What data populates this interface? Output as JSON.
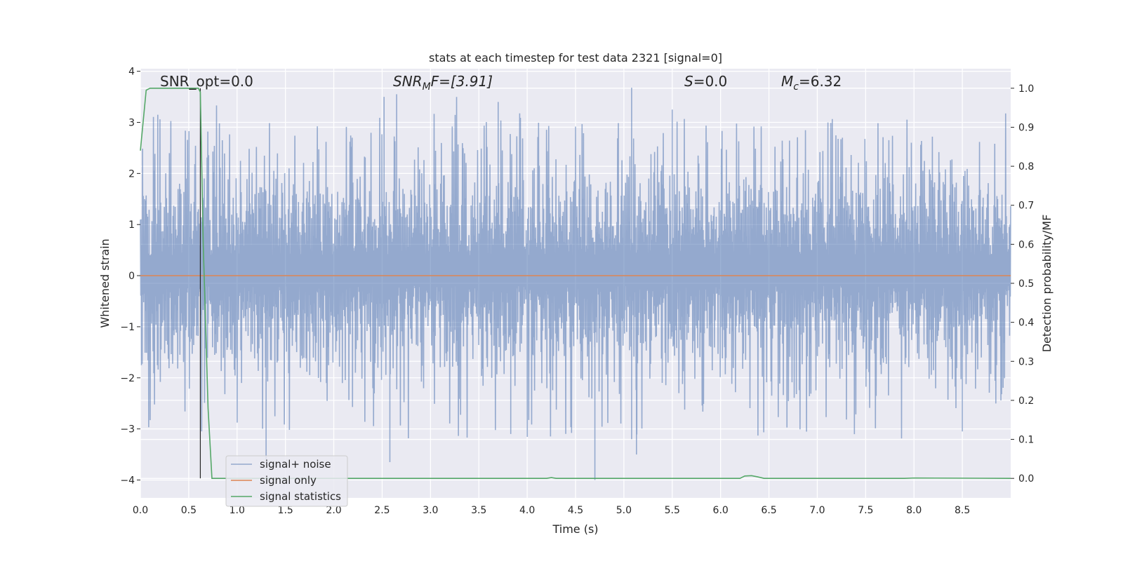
{
  "chart_data": {
    "type": "line",
    "title": "stats at each timestep for test data 2321 [signal=0]",
    "xlabel": "Time (s)",
    "ylabel_left": "Whitened strain",
    "ylabel_right": "Detection probability/MF",
    "xlim": [
      0.0,
      9.0
    ],
    "ylim_left": [
      -4.35,
      4.05
    ],
    "ylim_right": [
      -0.05,
      1.05
    ],
    "xticks": [
      "0.0",
      "0.5",
      "1.0",
      "1.5",
      "2.0",
      "2.5",
      "3.0",
      "3.5",
      "4.0",
      "4.5",
      "5.0",
      "5.5",
      "6.0",
      "6.5",
      "7.0",
      "7.5",
      "8.0",
      "8.5"
    ],
    "yticks_left": [
      "−4",
      "−3",
      "−2",
      "−1",
      "0",
      "1",
      "2",
      "3",
      "4"
    ],
    "yticks_right": [
      "0.0",
      "0.1",
      "0.2",
      "0.3",
      "0.4",
      "0.5",
      "0.6",
      "0.7",
      "0.8",
      "0.9",
      "1.0"
    ],
    "grid": true,
    "legend_position": "lower-left",
    "annotations": {
      "snr_opt": "SNR_opt=0.0",
      "snr_mf_italic": "SNR",
      "snr_mf_sub": "M",
      "snr_mf_rest": "F=[3.91]",
      "s_italic": "S",
      "s_rest": "=0.0",
      "mc_italic": "M",
      "mc_sub": "c",
      "mc_rest": "=6.32"
    },
    "vertical_marker_x": 0.62,
    "series": [
      {
        "name": "signal+ noise",
        "axis": "left",
        "color": "#4c72b0",
        "description_range": [
          -4.0,
          3.7
        ],
        "typical_band": [
          -1.7,
          2.1
        ],
        "notable_peaks": [
          {
            "x": 0.18,
            "y": 3.15
          },
          {
            "x": 2.52,
            "y": 3.5
          },
          {
            "x": 2.65,
            "y": 3.55
          },
          {
            "x": 5.08,
            "y": 3.68
          },
          {
            "x": 5.5,
            "y": 3.25
          },
          {
            "x": 3.7,
            "y": 3.4
          }
        ],
        "notable_troughs": [
          {
            "x": 1.3,
            "y": -3.6
          },
          {
            "x": 2.58,
            "y": -3.65
          },
          {
            "x": 4.7,
            "y": -4.0
          },
          {
            "x": 5.13,
            "y": -3.5
          },
          {
            "x": 5.08,
            "y": -3.2
          },
          {
            "x": 3.83,
            "y": -3.1
          },
          {
            "x": 8.5,
            "y": -3.05
          }
        ]
      },
      {
        "name": "signal only",
        "axis": "left",
        "color": "#dd8452",
        "x": [
          0.0,
          9.0
        ],
        "y": [
          0.0,
          0.0
        ]
      },
      {
        "name": "signal statistics",
        "axis": "right",
        "color": "#55a868",
        "x": [
          0.0,
          0.06,
          0.1,
          0.2,
          0.4,
          0.55,
          0.6,
          0.62,
          0.65,
          0.7,
          0.74,
          0.9,
          4.2,
          4.25,
          4.3,
          6.2,
          6.25,
          6.32,
          6.38,
          6.45,
          7.9,
          8.0,
          9.0
        ],
        "y": [
          0.84,
          0.995,
          1.0,
          1.0,
          1.0,
          1.0,
          1.0,
          0.99,
          0.6,
          0.18,
          0.0,
          0.0,
          0.0,
          0.002,
          0.0,
          0.0,
          0.006,
          0.007,
          0.004,
          0.0,
          0.0,
          0.001,
          0.0
        ]
      }
    ]
  }
}
